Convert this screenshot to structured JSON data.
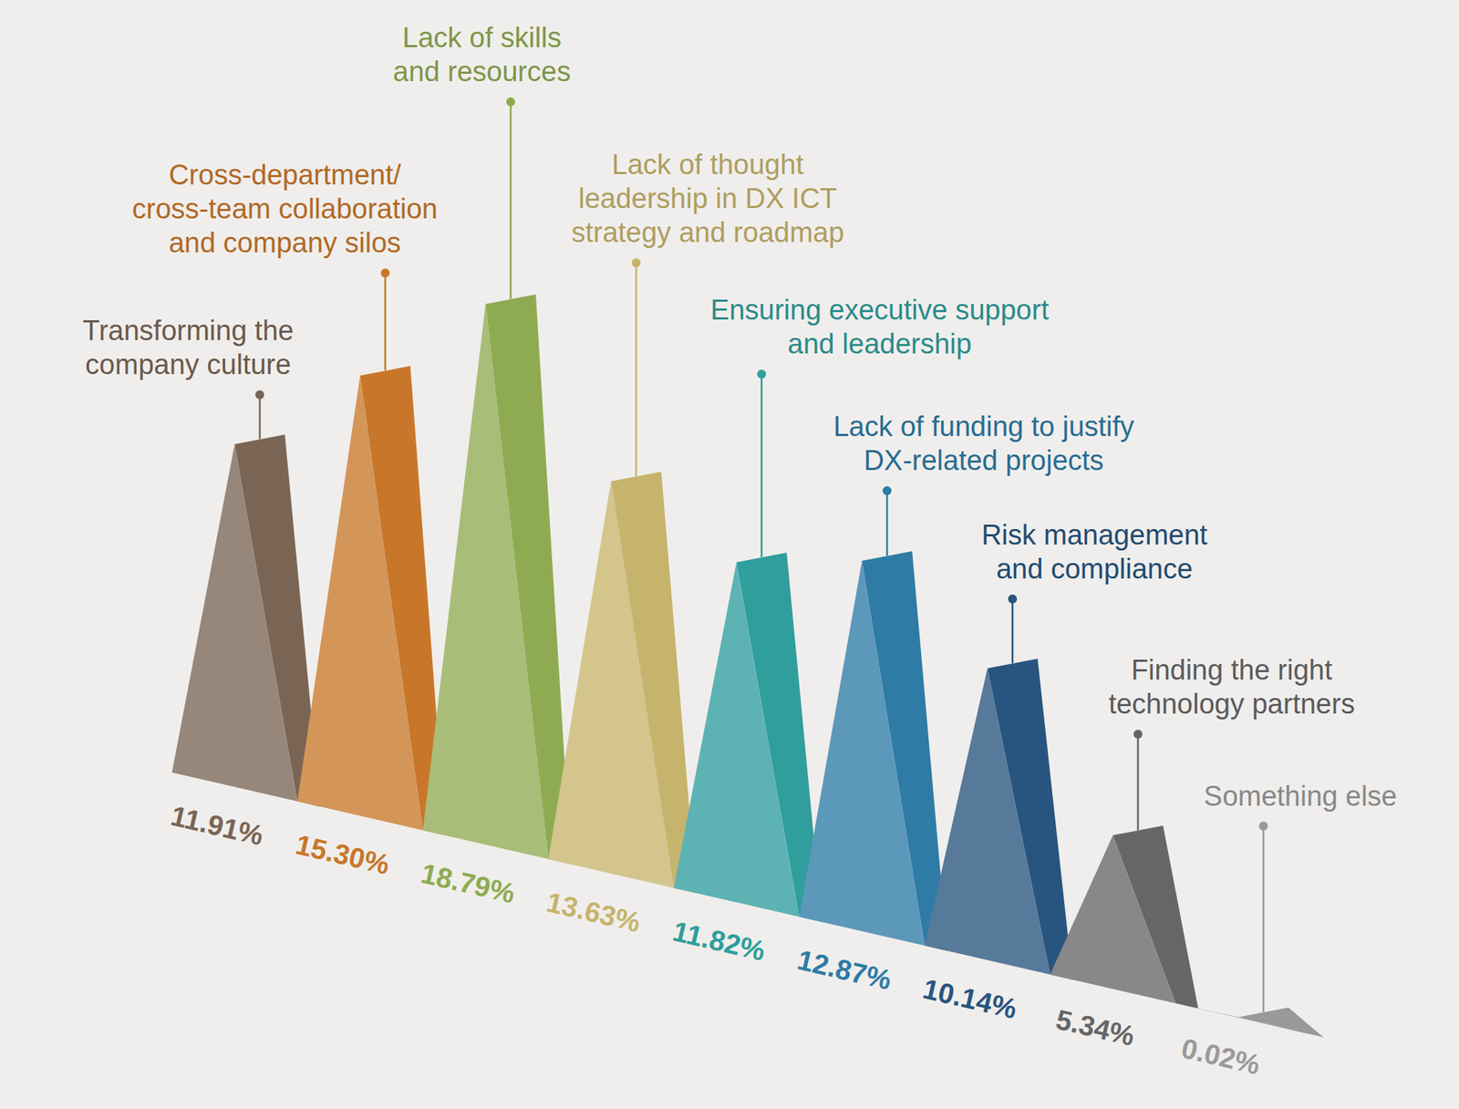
{
  "chart_data": {
    "type": "bar",
    "categories": [
      "Transforming the\ncompany culture",
      "Cross-department/\ncross-team collaboration\nand company silos",
      "Lack of skills\nand resources",
      "Lack of thought\nleadership in DX ICT\nstrategy and roadmap",
      "Ensuring executive support\nand leadership",
      "Lack of funding to justify\nDX-related projects",
      "Risk management\nand compliance",
      "Finding the right\ntechnology partners",
      "Something else"
    ],
    "values": [
      11.91,
      15.3,
      18.79,
      13.63,
      11.82,
      12.87,
      10.14,
      5.34,
      0.02
    ],
    "value_labels": [
      "11.91%",
      "15.30%",
      "18.79%",
      "13.63%",
      "11.82%",
      "12.87%",
      "10.14%",
      "5.34%",
      "0.02%"
    ],
    "colors": [
      "#7a6555",
      "#c8772a",
      "#8fab52",
      "#c6b46c",
      "#2f9e9d",
      "#2e7ba6",
      "#27557f",
      "#666668",
      "#9a9a9c"
    ],
    "ylim": [
      0,
      20
    ],
    "data_labels": true,
    "tick_labels": false,
    "grid": false
  }
}
